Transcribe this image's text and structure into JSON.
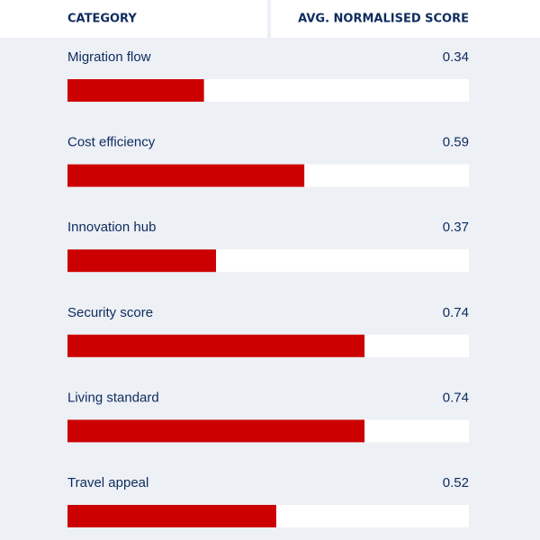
{
  "chart_data": {
    "type": "bar",
    "orientation": "horizontal",
    "headers": [
      "CATEGORY",
      "AVG. NORMALISED SCORE"
    ],
    "categories": [
      "Migration flow",
      "Cost efficiency",
      "Innovation hub",
      "Security score",
      "Living standard",
      "Travel appeal"
    ],
    "values": [
      0.34,
      0.59,
      0.37,
      0.74,
      0.74,
      0.52
    ],
    "color": "#cc0000",
    "xlim": [
      0,
      1
    ]
  }
}
